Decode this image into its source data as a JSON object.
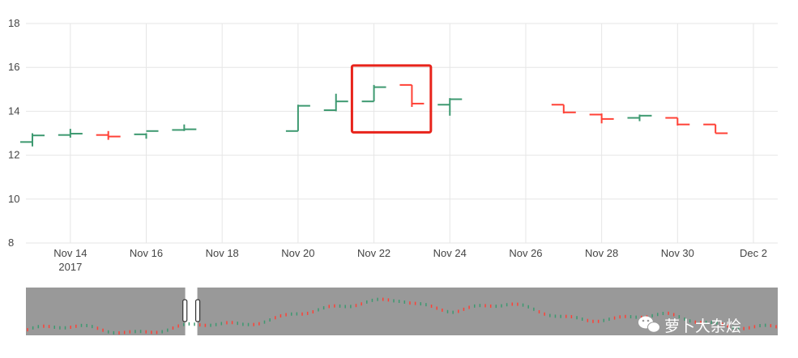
{
  "chart_data": {
    "type": "ohlc",
    "ylim": [
      8,
      18
    ],
    "y_ticks": [
      "8",
      "10",
      "12",
      "14",
      "16",
      "18"
    ],
    "x_ticks": [
      {
        "date": "2017-11-14",
        "label": "Nov 14",
        "sublabel": "2017"
      },
      {
        "date": "2017-11-16",
        "label": "Nov 16"
      },
      {
        "date": "2017-11-18",
        "label": "Nov 18"
      },
      {
        "date": "2017-11-20",
        "label": "Nov 20"
      },
      {
        "date": "2017-11-22",
        "label": "Nov 22"
      },
      {
        "date": "2017-11-24",
        "label": "Nov 24"
      },
      {
        "date": "2017-11-26",
        "label": "Nov 26"
      },
      {
        "date": "2017-11-28",
        "label": "Nov 28"
      },
      {
        "date": "2017-11-30",
        "label": "Nov 30"
      },
      {
        "date": "2017-12-02",
        "label": "Dec 2"
      }
    ],
    "xlim": [
      "2017-11-13",
      "2017-12-02"
    ],
    "grid": true,
    "colors": {
      "increasing": "#3D9970",
      "decreasing": "#FF4136",
      "highlight": "#e8231b",
      "rangeslider_bg": "#999999"
    },
    "ohlc": [
      {
        "date": "2017-11-13",
        "open": 12.6,
        "high": 13.0,
        "low": 12.4,
        "close": 12.9
      },
      {
        "date": "2017-11-14",
        "open": 12.92,
        "high": 13.2,
        "low": 12.8,
        "close": 12.98
      },
      {
        "date": "2017-11-15",
        "open": 12.92,
        "high": 13.1,
        "low": 12.7,
        "close": 12.85
      },
      {
        "date": "2017-11-16",
        "open": 12.95,
        "high": 13.0,
        "low": 12.75,
        "close": 13.1
      },
      {
        "date": "2017-11-17",
        "open": 13.15,
        "high": 13.4,
        "low": 13.1,
        "close": 13.18
      },
      {
        "date": "2017-11-20",
        "open": 13.1,
        "high": 14.3,
        "low": 13.1,
        "close": 14.25
      },
      {
        "date": "2017-11-21",
        "open": 14.05,
        "high": 14.8,
        "low": 14.0,
        "close": 14.45
      },
      {
        "date": "2017-11-22",
        "open": 14.45,
        "high": 15.2,
        "low": 14.45,
        "close": 15.1
      },
      {
        "date": "2017-11-23",
        "open": 15.2,
        "high": 15.2,
        "low": 14.2,
        "close": 14.35
      },
      {
        "date": "2017-11-24",
        "open": 14.3,
        "high": 14.6,
        "low": 13.8,
        "close": 14.55
      },
      {
        "date": "2017-11-27",
        "open": 14.3,
        "high": 14.3,
        "low": 13.9,
        "close": 13.95
      },
      {
        "date": "2017-11-28",
        "open": 13.85,
        "high": 13.9,
        "low": 13.45,
        "close": 13.65
      },
      {
        "date": "2017-11-29",
        "open": 13.7,
        "high": 13.85,
        "low": 13.55,
        "close": 13.8
      },
      {
        "date": "2017-11-30",
        "open": 13.7,
        "high": 13.7,
        "low": 13.35,
        "close": 13.4
      },
      {
        "date": "2017-12-01",
        "open": 13.4,
        "high": 13.4,
        "low": 13.0,
        "close": 13.0
      }
    ],
    "highlight_range": [
      "2017-11-21",
      "2017-11-23"
    ],
    "rangeslider": {
      "visible": true
    },
    "watermark": {
      "text": "萝卜大杂烩",
      "icon": "wechat-icon"
    }
  }
}
